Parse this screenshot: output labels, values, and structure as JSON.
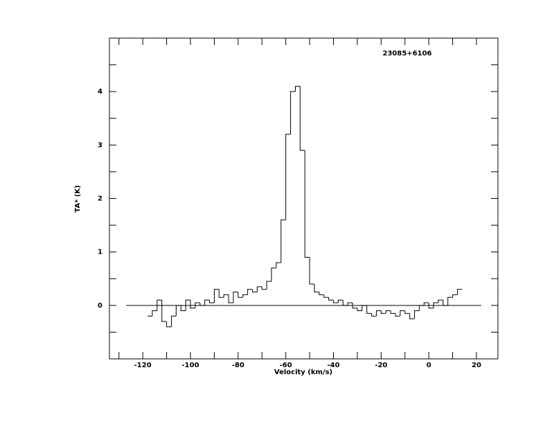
{
  "chart_data": {
    "type": "step-line",
    "title": "23085+6106",
    "x_label": "Velocity (km/s)",
    "y_label": "TA* (K)",
    "xlim": [
      -134,
      29
    ],
    "ylim": [
      -1,
      5
    ],
    "xticks": [
      -120,
      -100,
      -80,
      -60,
      -40,
      -20,
      0,
      20
    ],
    "xminor_ticks": [
      -130,
      -110,
      -90,
      -70,
      -50,
      -30,
      -10,
      10
    ],
    "yticks": [
      0,
      1,
      2,
      3,
      4
    ],
    "yminor_ticks": [
      -0.5,
      0.5,
      1.5,
      2.5,
      3.5,
      4.5
    ],
    "baseline": {
      "y": 0,
      "x": [
        -127,
        22
      ]
    },
    "color": "#000000",
    "x": [
      -117,
      -115,
      -113,
      -111,
      -109,
      -107,
      -105,
      -103,
      -101,
      -99,
      -97,
      -95,
      -93,
      -91,
      -89,
      -87,
      -85,
      -83,
      -81,
      -79,
      -77,
      -75,
      -73,
      -71,
      -69,
      -67,
      -65,
      -63,
      -61,
      -59,
      -57,
      -55,
      -53,
      -51,
      -49,
      -47,
      -45,
      -43,
      -41,
      -39,
      -37,
      -35,
      -33,
      -31,
      -29,
      -27,
      -25,
      -23,
      -21,
      -19,
      -17,
      -15,
      -13,
      -11,
      -9,
      -7,
      -5,
      -3,
      -1,
      1,
      3,
      5,
      7,
      9,
      11,
      13
    ],
    "values": [
      -0.2,
      -0.1,
      0.1,
      -0.3,
      -0.4,
      -0.2,
      0.0,
      -0.1,
      0.1,
      -0.05,
      0.05,
      0.0,
      0.1,
      0.05,
      0.3,
      0.15,
      0.2,
      0.05,
      0.25,
      0.15,
      0.2,
      0.3,
      0.25,
      0.35,
      0.3,
      0.45,
      0.7,
      0.8,
      1.6,
      3.2,
      4.0,
      4.1,
      2.9,
      0.9,
      0.4,
      0.25,
      0.2,
      0.15,
      0.1,
      0.05,
      0.1,
      0.0,
      0.05,
      -0.05,
      -0.1,
      0.0,
      -0.15,
      -0.2,
      -0.1,
      -0.15,
      -0.1,
      -0.15,
      -0.2,
      -0.1,
      -0.15,
      -0.25,
      -0.1,
      0.0,
      0.05,
      -0.05,
      0.05,
      0.1,
      0.0,
      0.15,
      0.2,
      0.3
    ]
  }
}
